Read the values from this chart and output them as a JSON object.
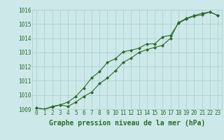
{
  "title": "Graphe pression niveau de la mer (hPa)",
  "x": [
    0,
    1,
    2,
    3,
    4,
    5,
    6,
    7,
    8,
    9,
    10,
    11,
    12,
    13,
    14,
    15,
    16,
    17,
    18,
    19,
    20,
    21,
    22,
    23
  ],
  "line1": [
    1009.1,
    1009.0,
    1009.2,
    1009.3,
    1009.2,
    1009.5,
    1009.9,
    1010.2,
    1010.8,
    1011.2,
    1011.7,
    1012.3,
    1012.6,
    1013.0,
    1013.2,
    1013.35,
    1013.5,
    1014.0,
    1015.1,
    1015.4,
    1015.6,
    1015.75,
    1015.85,
    1015.6
  ],
  "line2": [
    1009.1,
    1009.0,
    1009.15,
    1009.3,
    1009.5,
    1009.9,
    1010.5,
    1011.2,
    1011.65,
    1012.3,
    1012.55,
    1013.05,
    1013.15,
    1013.3,
    1013.6,
    1013.6,
    1014.1,
    1014.2,
    1015.05,
    1015.35,
    1015.55,
    1015.65,
    1015.85,
    1015.6
  ],
  "line_color": "#2d6a2d",
  "bg_color": "#cce8e8",
  "grid_color": "#aacece",
  "ylim_min": 1009.0,
  "ylim_max": 1016.0,
  "yticks": [
    1009,
    1010,
    1011,
    1012,
    1013,
    1014,
    1015,
    1016
  ],
  "title_fontsize": 7.0,
  "tick_fontsize": 5.5,
  "marker": "D",
  "markersize": 2.0,
  "linewidth": 0.8
}
